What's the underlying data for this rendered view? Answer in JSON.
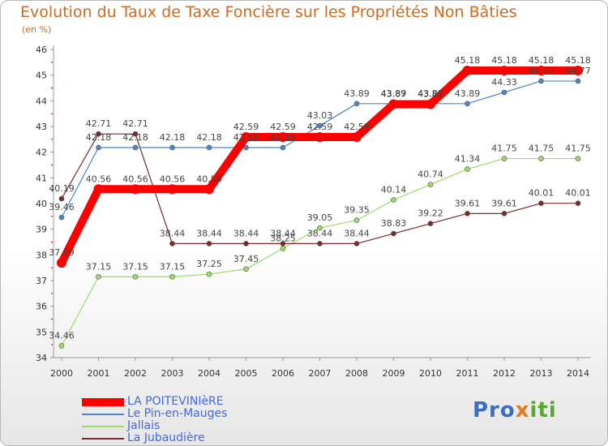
{
  "title": "Evolution du Taux de Taxe Foncière sur les Propriétés Non Bâties",
  "subtitle": "(en %)",
  "logo": [
    "Pro",
    "x",
    "iti"
  ],
  "chart_data": {
    "type": "line",
    "title": "Evolution du Taux de Taxe Foncière sur les Propriétés Non Bâties",
    "ylabel": "(en %)",
    "xlabel": "",
    "ylim": [
      34,
      46
    ],
    "yticks": [
      34,
      35,
      36,
      37,
      38,
      39,
      40,
      41,
      42,
      43,
      44,
      45,
      46
    ],
    "categories": [
      "2000",
      "2001",
      "2002",
      "2003",
      "2004",
      "2005",
      "2006",
      "2007",
      "2008",
      "2009",
      "2010",
      "2011",
      "2012",
      "2013",
      "2014"
    ],
    "series": [
      {
        "name": "LA POITEVINIèRE",
        "color": "#ff0000",
        "values": [
          37.69,
          40.56,
          40.56,
          40.56,
          40.56,
          42.59,
          42.59,
          42.59,
          42.59,
          43.87,
          43.87,
          45.18,
          45.18,
          45.18,
          45.18
        ],
        "labels": [
          "37.69",
          "40.56",
          "40.56",
          "40.56",
          "40.56",
          "42.59",
          "42.59",
          "42.59",
          "42.59",
          "43.87",
          "43.87",
          "45.18",
          "45.18",
          "45.18",
          "45.18"
        ]
      },
      {
        "name": "Le Pin-en-Mauges",
        "color": "#4a86c8",
        "values": [
          39.46,
          42.18,
          42.18,
          42.18,
          42.18,
          42.18,
          42.18,
          43.03,
          43.89,
          43.89,
          43.89,
          43.89,
          44.33,
          44.77,
          44.77
        ],
        "labels": [
          "39.46",
          "42.18",
          "42.18",
          "42.18",
          "42.18",
          "42.18",
          "42.18",
          "43.03",
          "43.89",
          "43.89",
          "43.89",
          "43.89",
          "44.33",
          "44.77",
          "44.77"
        ]
      },
      {
        "name": "Jallais",
        "color": "#99dd66",
        "values": [
          34.46,
          37.15,
          37.15,
          37.15,
          37.25,
          37.45,
          38.25,
          39.05,
          39.35,
          40.14,
          40.74,
          41.34,
          41.75,
          41.75,
          41.75
        ],
        "labels": [
          "34.46",
          "37.15",
          "37.15",
          "37.15",
          "37.25",
          "37.45",
          "38.25",
          "39.05",
          "39.35",
          "40.14",
          "40.74",
          "41.34",
          "41.75",
          "41.75",
          "41.75"
        ]
      },
      {
        "name": "La Jubaudière",
        "color": "#7a2a2a",
        "values": [
          40.19,
          42.71,
          42.71,
          38.44,
          38.44,
          38.44,
          38.44,
          38.44,
          38.44,
          38.83,
          39.22,
          39.61,
          39.61,
          40.01,
          40.01
        ],
        "labels": [
          "40.19",
          "42.71",
          "42.71",
          "38.44",
          "38.44",
          "38.44",
          "38.44",
          "38.44",
          "38.44",
          "38.83",
          "39.22",
          "39.61",
          "39.61",
          "40.01",
          "40.01"
        ]
      }
    ],
    "legend": "bottom-left",
    "grid": false
  }
}
